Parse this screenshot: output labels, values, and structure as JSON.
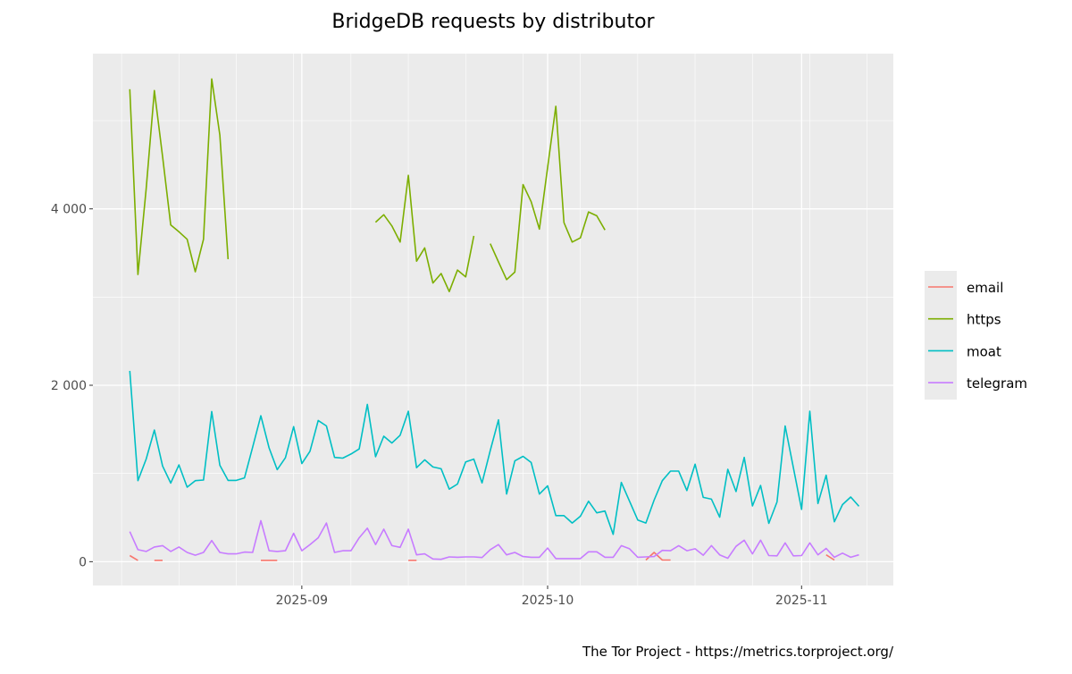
{
  "chart_data": {
    "type": "line",
    "title": "BridgeDB requests by distributor",
    "caption": "The Tor Project - https://metrics.torproject.org/",
    "xlabel": "",
    "ylabel": "",
    "x_start": "2025-08-11",
    "x_step_days": 1,
    "xlim": [
      "2025-08-06",
      "2025-11-11"
    ],
    "ylim": [
      -270,
      5760
    ],
    "grid": true,
    "legend_position": "right",
    "y_ticks": [
      {
        "value": 0,
        "label": "0"
      },
      {
        "value": 2000,
        "label": "2 000"
      },
      {
        "value": 4000,
        "label": "4 000"
      }
    ],
    "x_ticks": [
      {
        "day": 21,
        "label": "2025-09"
      },
      {
        "day": 51,
        "label": "2025-10"
      },
      {
        "day": 82,
        "label": "2025-11"
      }
    ],
    "series": [
      {
        "name": "email",
        "color": "#F8766D",
        "values": [
          70,
          15,
          null,
          15,
          15,
          null,
          null,
          null,
          null,
          null,
          null,
          null,
          null,
          null,
          null,
          null,
          15,
          15,
          15,
          null,
          null,
          null,
          null,
          null,
          null,
          null,
          null,
          null,
          null,
          null,
          null,
          null,
          null,
          null,
          15,
          15,
          null,
          null,
          null,
          null,
          null,
          null,
          null,
          null,
          null,
          null,
          null,
          null,
          null,
          null,
          null,
          null,
          null,
          null,
          null,
          null,
          null,
          null,
          null,
          null,
          null,
          null,
          null,
          19,
          105,
          19,
          19,
          null,
          null,
          null,
          null,
          null,
          null,
          null,
          null,
          null,
          null,
          null,
          null,
          null,
          null,
          null,
          null,
          null,
          null,
          78,
          19,
          null,
          null,
          null
        ]
      },
      {
        "name": "https",
        "color": "#7CAE00",
        "values": [
          5357,
          3256,
          4225,
          5341,
          4593,
          3818,
          3740,
          3655,
          3287,
          3655,
          5473,
          4837,
          3430,
          null,
          null,
          null,
          null,
          null,
          null,
          null,
          null,
          null,
          null,
          null,
          null,
          null,
          null,
          null,
          null,
          null,
          3849,
          3934,
          3806,
          3624,
          4380,
          3407,
          3558,
          3159,
          3267,
          3062,
          3306,
          3229,
          3694,
          null,
          3605,
          3399,
          3198,
          3283,
          4275,
          4081,
          3771,
          4470,
          5163,
          3845,
          3624,
          3671,
          3965,
          3922,
          3760,
          null,
          null,
          null,
          null,
          null,
          null,
          null,
          null,
          null,
          null,
          null,
          null,
          null,
          null,
          null,
          null,
          null,
          null,
          null,
          null,
          null,
          null,
          null,
          null,
          null,
          null,
          null,
          null,
          null,
          null,
          null
        ]
      },
      {
        "name": "moat",
        "color": "#00BFC4",
        "values": [
          2163,
          919,
          1163,
          1492,
          1085,
          891,
          1097,
          845,
          919,
          926,
          1702,
          1093,
          922,
          922,
          950,
          1298,
          1655,
          1291,
          1043,
          1178,
          1531,
          1112,
          1252,
          1601,
          1539,
          1182,
          1174,
          1221,
          1279,
          1783,
          1190,
          1422,
          1345,
          1434,
          1705,
          1066,
          1155,
          1074,
          1054,
          822,
          880,
          1132,
          1163,
          893,
          1260,
          1608,
          767,
          1143,
          1194,
          1124,
          767,
          860,
          523,
          523,
          438,
          515,
          686,
          554,
          574,
          310,
          899,
          686,
          473,
          438,
          698,
          919,
          1027,
          1027,
          806,
          1105,
          729,
          709,
          504,
          1047,
          795,
          1182,
          632,
          864,
          434,
          678,
          1539,
          1066,
          593,
          1705,
          659,
          981,
          453,
          647,
          733,
          628
        ]
      },
      {
        "name": "telegram",
        "color": "#C77CFF",
        "values": [
          341,
          136,
          116,
          167,
          182,
          116,
          167,
          105,
          74,
          105,
          240,
          105,
          89,
          89,
          109,
          105,
          465,
          124,
          116,
          124,
          322,
          124,
          194,
          271,
          438,
          105,
          124,
          124,
          271,
          380,
          194,
          368,
          182,
          163,
          368,
          78,
          89,
          31,
          27,
          54,
          50,
          54,
          54,
          47,
          136,
          194,
          78,
          105,
          58,
          50,
          50,
          155,
          35,
          35,
          35,
          35,
          112,
          112,
          50,
          50,
          182,
          147,
          50,
          54,
          58,
          128,
          124,
          182,
          124,
          147,
          74,
          182,
          78,
          39,
          174,
          244,
          89,
          244,
          70,
          66,
          213,
          66,
          70,
          213,
          78,
          151,
          50,
          97,
          50,
          78
        ]
      }
    ]
  }
}
